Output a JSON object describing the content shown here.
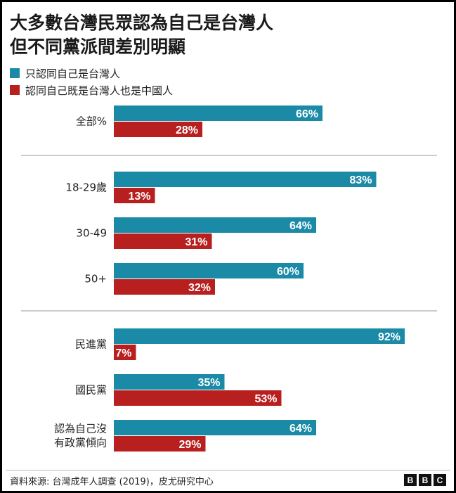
{
  "title_line1": "大多數台灣民眾認為自己是台灣人",
  "title_line2": "但不同黨派間差別明顯",
  "legend": [
    {
      "label": "只認同自己是台灣人",
      "color": "#1a8aa6"
    },
    {
      "label": "認同自己既是台灣人也是中國人",
      "color": "#b81f1f"
    }
  ],
  "source": "資料來源: 台灣成年人調查 (2019)，皮尤研究中心",
  "logo": [
    "B",
    "B",
    "C"
  ],
  "chart_data": {
    "type": "bar",
    "orientation": "horizontal",
    "xlim": [
      0,
      100
    ],
    "series": [
      {
        "name": "只認同自己是台灣人",
        "color": "#1a8aa6"
      },
      {
        "name": "認同自己既是台灣人也是中國人",
        "color": "#b81f1f"
      }
    ],
    "groups": [
      [
        {
          "category": [
            "全部%"
          ],
          "values": [
            66,
            28
          ]
        }
      ],
      [
        {
          "category": [
            "18-29歲"
          ],
          "values": [
            83,
            13
          ]
        },
        {
          "category": [
            "30-49"
          ],
          "values": [
            64,
            31
          ]
        },
        {
          "category": [
            "50+"
          ],
          "values": [
            60,
            32
          ]
        }
      ],
      [
        {
          "category": [
            "民進黨"
          ],
          "values": [
            92,
            7
          ]
        },
        {
          "category": [
            "國民黨"
          ],
          "values": [
            35,
            53
          ]
        },
        {
          "category": [
            "認為自己沒",
            "有政黨傾向"
          ],
          "values": [
            64,
            29
          ]
        }
      ]
    ],
    "value_suffix": "%"
  }
}
